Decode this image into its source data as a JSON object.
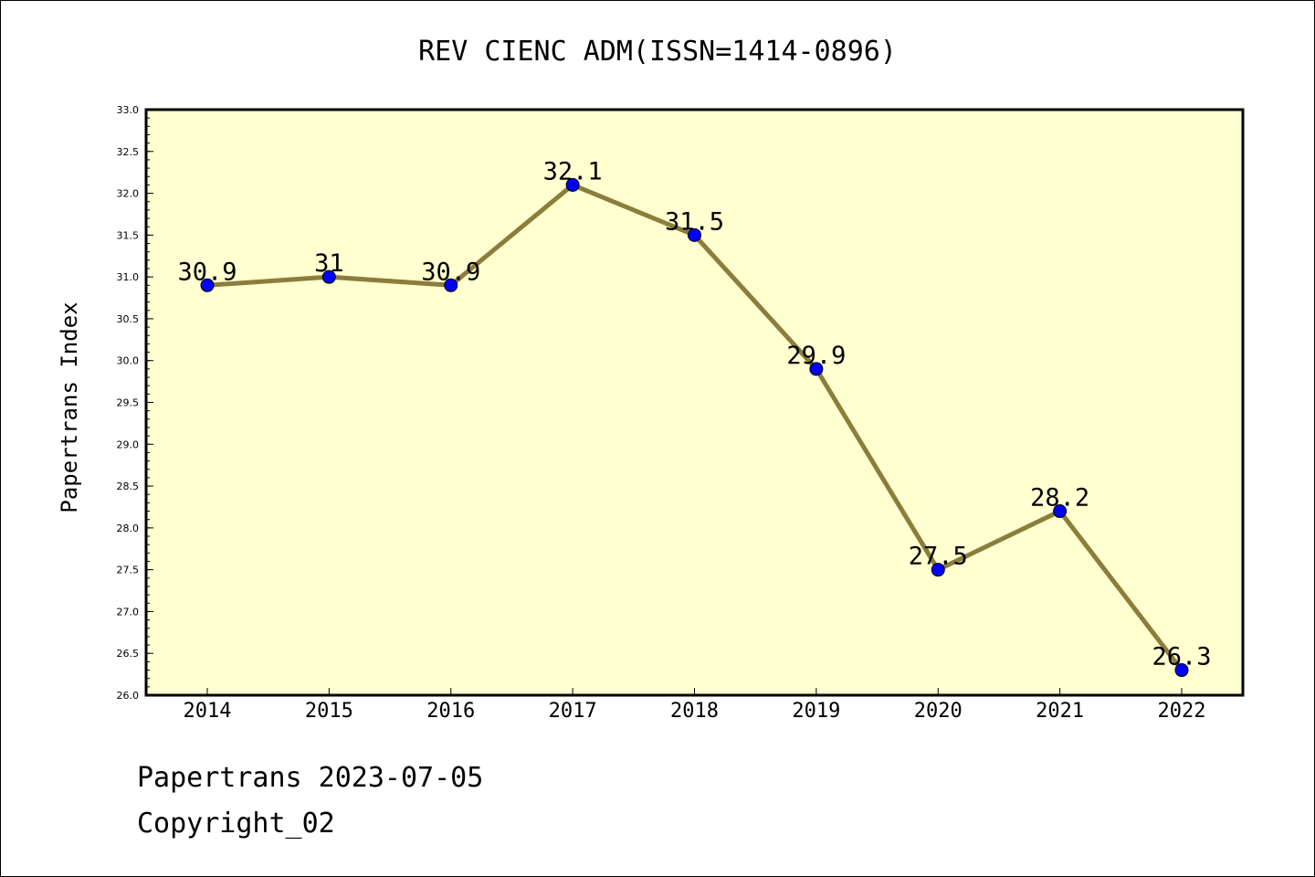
{
  "chart_data": {
    "type": "line",
    "title": "REV CIENC ADM(ISSN=1414-0896)",
    "xlabel": "",
    "ylabel": "Papertrans Index",
    "categories": [
      "2014",
      "2015",
      "2016",
      "2017",
      "2018",
      "2019",
      "2020",
      "2021",
      "2022"
    ],
    "values": [
      30.9,
      31,
      30.9,
      32.1,
      31.5,
      29.9,
      27.5,
      28.2,
      26.3
    ],
    "data_labels": [
      "30.9",
      "31",
      "30.9",
      "32.1",
      "31.5",
      "29.9",
      "27.5",
      "28.2",
      "26.3"
    ],
    "ylim": [
      26.0,
      33.0
    ],
    "yticks": [
      "26.0",
      "26.5",
      "27.0",
      "27.5",
      "28.0",
      "28.5",
      "29.0",
      "29.5",
      "30.0",
      "30.5",
      "31.0",
      "31.5",
      "32.0",
      "32.5",
      "33.0"
    ],
    "grid": false,
    "colors": {
      "plot_background": "#ffffd0",
      "line": "#8b7d3a",
      "marker": "#0000ff"
    }
  },
  "footer": {
    "line1": "Papertrans 2023-07-05",
    "line2": "Copyright_02"
  }
}
